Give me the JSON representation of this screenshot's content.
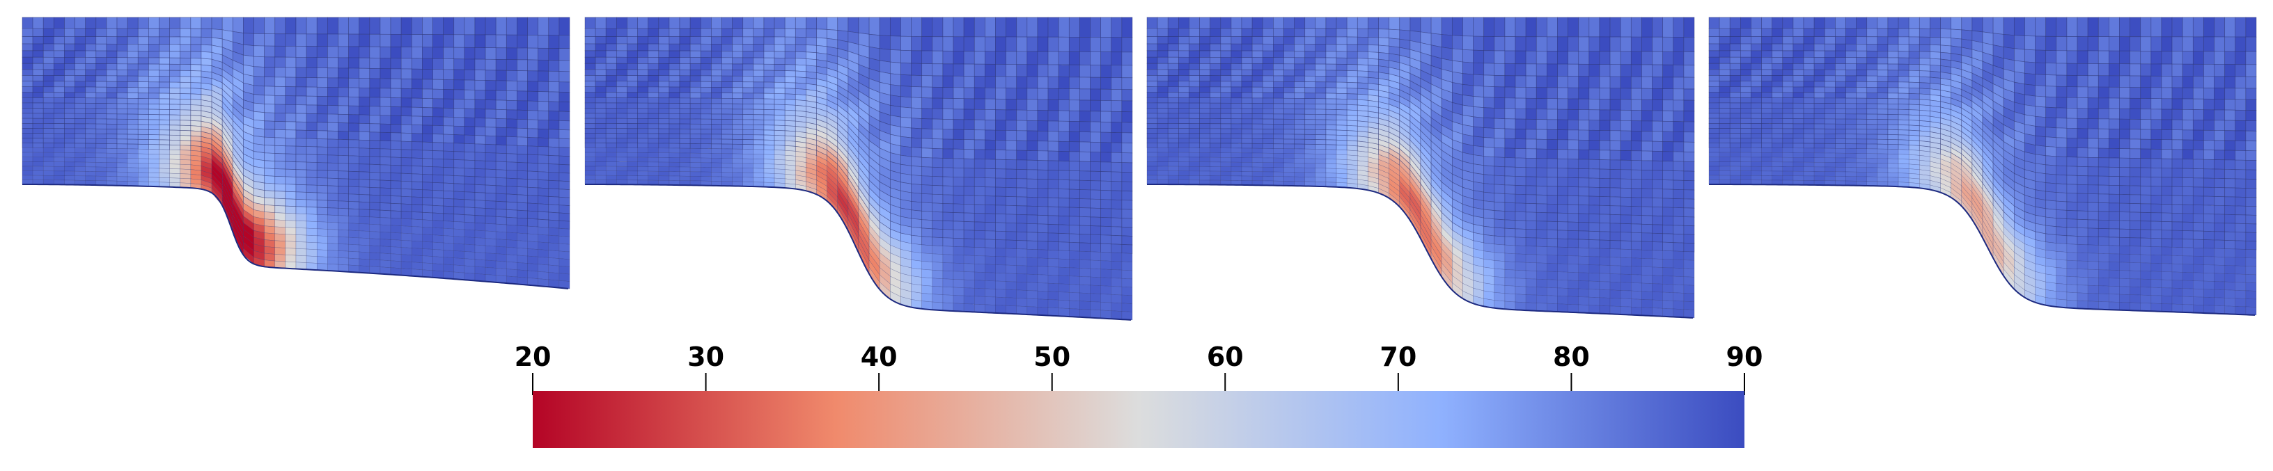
{
  "panels": [
    {
      "name": "mesh-panel-1",
      "hot_min": 20
    },
    {
      "name": "mesh-panel-2",
      "hot_min": 32
    },
    {
      "name": "mesh-panel-3",
      "hot_min": 36
    },
    {
      "name": "mesh-panel-4",
      "hot_min": 46
    }
  ],
  "colorbar": {
    "ticks": [
      "20",
      "30",
      "40",
      "50",
      "60",
      "70",
      "80",
      "90"
    ],
    "min": 20,
    "max": 90,
    "colors": [
      "#b40426",
      "#f08a6c",
      "#dcdddd",
      "#8fb1fe",
      "#3b4cc0"
    ]
  }
}
